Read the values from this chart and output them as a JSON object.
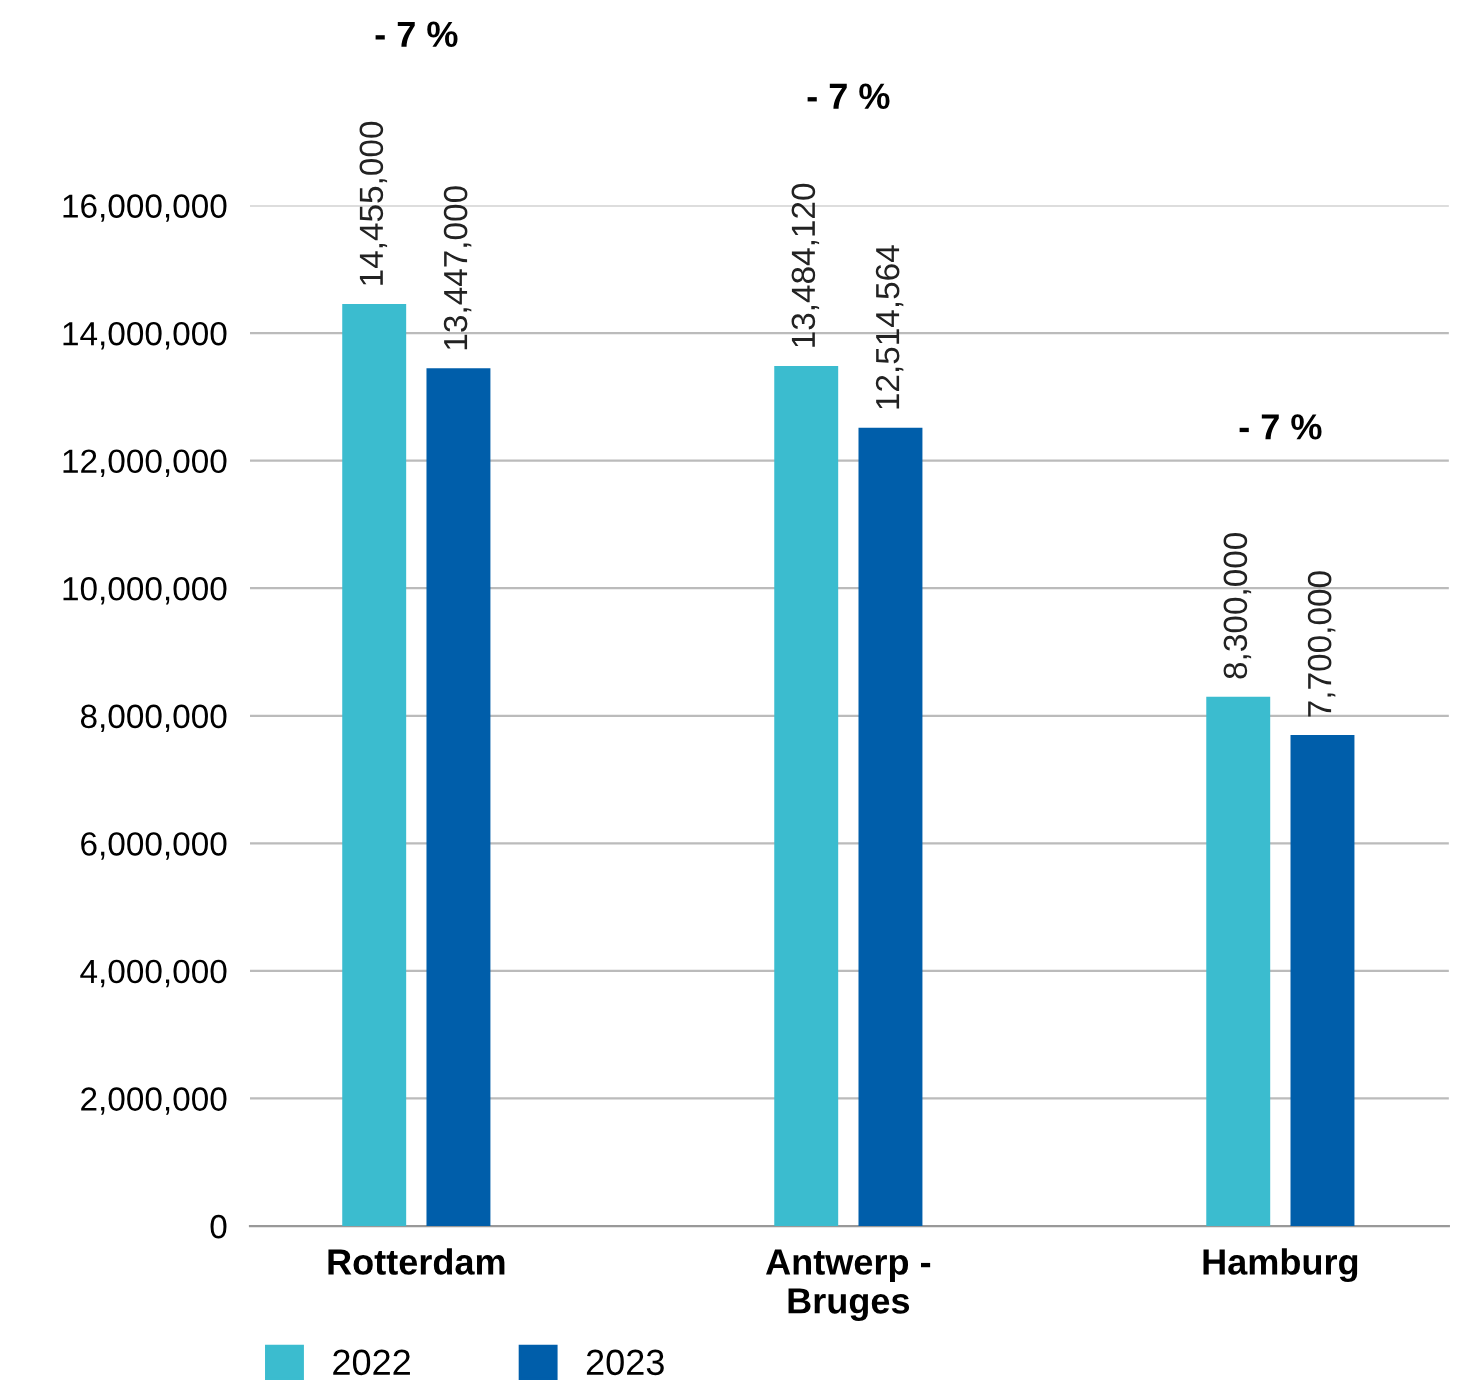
{
  "chart_data": {
    "type": "bar",
    "categories": [
      "Rotterdam",
      "Antwerp -\nBruges",
      "Hamburg"
    ],
    "series": [
      {
        "name": "2022",
        "color": "#3bbccf",
        "values": [
          14455000,
          13484120,
          8300000
        ],
        "value_labels": [
          "14,455,000",
          "13,484,120",
          "8,300,000"
        ]
      },
      {
        "name": "2023",
        "color": "#005eaa",
        "values": [
          13447000,
          12514564,
          7700000
        ],
        "value_labels": [
          "13,447,000",
          "12,514,564",
          "7,700,000"
        ]
      }
    ],
    "ylim": [
      0,
      16000000
    ],
    "yticks": [
      {
        "value": 0,
        "label": "0"
      },
      {
        "value": 2000000,
        "label": "2,000,000"
      },
      {
        "value": 4000000,
        "label": "4,000,000"
      },
      {
        "value": 6000000,
        "label": "6,000,000"
      },
      {
        "value": 8000000,
        "label": "8,000,000"
      },
      {
        "value": 10000000,
        "label": "10,000,000"
      },
      {
        "value": 12000000,
        "label": "12,000,000"
      },
      {
        "value": 14000000,
        "label": "14,000,000"
      },
      {
        "value": 16000000,
        "label": "16,000,000"
      }
    ],
    "annotations": [
      "- 7 %",
      "- 7 %",
      "- 7 %"
    ],
    "grid": "y",
    "legend": "bottom left"
  }
}
